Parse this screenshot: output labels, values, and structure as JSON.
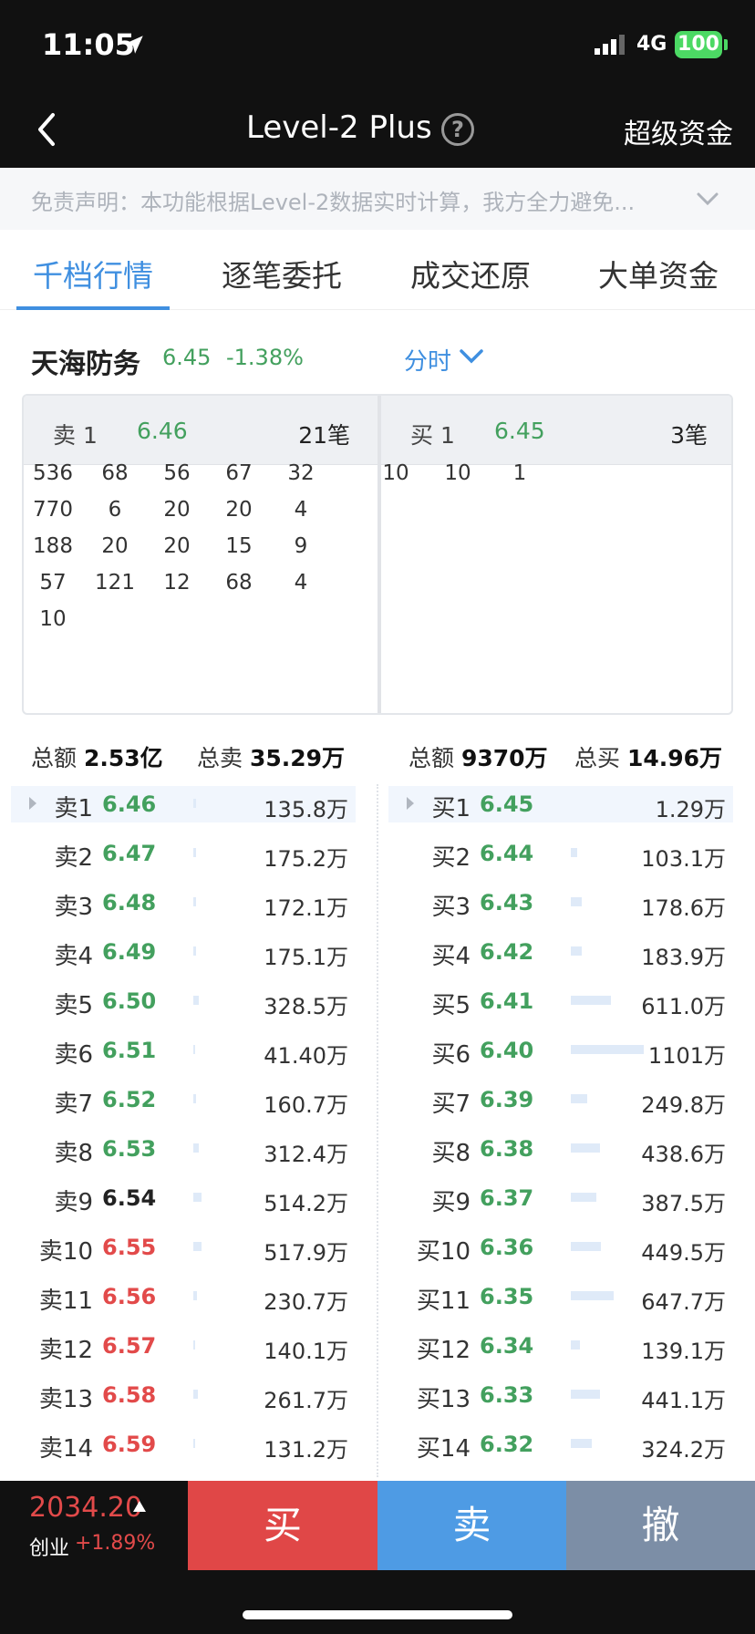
{
  "status": {
    "time": "11:05",
    "network": "4G",
    "battery": "100"
  },
  "nav": {
    "title": "Level-2 Plus",
    "help": "?",
    "right": "超级资金"
  },
  "disclaimer": "免责声明：本功能根据Level-2数据实时计算，我方全力避免...",
  "tabs": [
    "千档行情",
    "逐笔委托",
    "成交还原",
    "大单资金"
  ],
  "stock": {
    "name": "天海防务",
    "price": "6.45",
    "change": "-1.38%",
    "mode": "分时"
  },
  "queue": {
    "sell_label": "卖 1",
    "sell_price": "6.46",
    "sell_count": "21笔",
    "buy_label": "买 1",
    "buy_price": "6.45",
    "buy_count": "3笔",
    "sell_orders": [
      [
        "536",
        "68",
        "56",
        "67",
        "32"
      ],
      [
        "770",
        "6",
        "20",
        "20",
        "4"
      ],
      [
        "188",
        "20",
        "20",
        "15",
        "9"
      ],
      [
        "57",
        "121",
        "12",
        "68",
        "4"
      ],
      [
        "10"
      ]
    ],
    "buy_orders": [
      [
        "10",
        "10",
        "1"
      ]
    ]
  },
  "totals": {
    "sell_amount_label": "总额",
    "sell_amount": "2.53亿",
    "sell_volume_label": "总卖",
    "sell_volume": "35.29万",
    "buy_amount_label": "总额",
    "buy_amount": "9370万",
    "buy_volume_label": "总买",
    "buy_volume": "14.96万"
  },
  "asks": [
    {
      "level": "卖1",
      "price": "6.46",
      "volume": "135.8万",
      "bar": 0.4,
      "color": "green"
    },
    {
      "level": "卖2",
      "price": "6.47",
      "volume": "175.2万",
      "bar": 0.4,
      "color": "green"
    },
    {
      "level": "卖3",
      "price": "6.48",
      "volume": "172.1万",
      "bar": 0.4,
      "color": "green"
    },
    {
      "level": "卖4",
      "price": "6.49",
      "volume": "175.1万",
      "bar": 0.4,
      "color": "green"
    },
    {
      "level": "卖5",
      "price": "6.50",
      "volume": "328.5万",
      "bar": 0.8,
      "color": "green"
    },
    {
      "level": "卖6",
      "price": "6.51",
      "volume": "41.40万",
      "bar": 0.2,
      "color": "green"
    },
    {
      "level": "卖7",
      "price": "6.52",
      "volume": "160.7万",
      "bar": 0.4,
      "color": "green"
    },
    {
      "level": "卖8",
      "price": "6.53",
      "volume": "312.4万",
      "bar": 0.7,
      "color": "green"
    },
    {
      "level": "卖9",
      "price": "6.54",
      "volume": "514.2万",
      "bar": 1.1,
      "color": "black"
    },
    {
      "level": "卖10",
      "price": "6.55",
      "volume": "517.9万",
      "bar": 1.1,
      "color": "red"
    },
    {
      "level": "卖11",
      "price": "6.56",
      "volume": "230.7万",
      "bar": 0.5,
      "color": "red"
    },
    {
      "level": "卖12",
      "price": "6.57",
      "volume": "140.1万",
      "bar": 0.3,
      "color": "red"
    },
    {
      "level": "卖13",
      "price": "6.58",
      "volume": "261.7万",
      "bar": 0.6,
      "color": "red"
    },
    {
      "level": "卖14",
      "price": "6.59",
      "volume": "131.2万",
      "bar": 0.3,
      "color": "red"
    }
  ],
  "bids": [
    {
      "level": "买1",
      "price": "6.45",
      "volume": "1.29万",
      "bar": 0,
      "color": "green"
    },
    {
      "level": "买2",
      "price": "6.44",
      "volume": "103.1万",
      "bar": 0.9,
      "color": "green"
    },
    {
      "level": "买3",
      "price": "6.43",
      "volume": "178.6万",
      "bar": 1.5,
      "color": "green"
    },
    {
      "level": "买4",
      "price": "6.42",
      "volume": "183.9万",
      "bar": 1.5,
      "color": "green"
    },
    {
      "level": "买5",
      "price": "6.41",
      "volume": "611.0万",
      "bar": 5.5,
      "color": "green"
    },
    {
      "level": "买6",
      "price": "6.40",
      "volume": "1101万",
      "bar": 10,
      "color": "green"
    },
    {
      "level": "买7",
      "price": "6.39",
      "volume": "249.8万",
      "bar": 2.2,
      "color": "green"
    },
    {
      "level": "买8",
      "price": "6.38",
      "volume": "438.6万",
      "bar": 4,
      "color": "green"
    },
    {
      "level": "买9",
      "price": "6.37",
      "volume": "387.5万",
      "bar": 3.5,
      "color": "green"
    },
    {
      "level": "买10",
      "price": "6.36",
      "volume": "449.5万",
      "bar": 4.1,
      "color": "green"
    },
    {
      "level": "买11",
      "price": "6.35",
      "volume": "647.7万",
      "bar": 5.9,
      "color": "green"
    },
    {
      "level": "买12",
      "price": "6.34",
      "volume": "139.1万",
      "bar": 1.2,
      "color": "green"
    },
    {
      "level": "买13",
      "price": "6.33",
      "volume": "441.1万",
      "bar": 4,
      "color": "green"
    },
    {
      "level": "买14",
      "price": "6.32",
      "volume": "324.2万",
      "bar": 2.9,
      "color": "green"
    }
  ],
  "index": {
    "value": "2034.20",
    "name": "创业",
    "change": "+1.89%"
  },
  "actions": {
    "buy": "买",
    "sell": "卖",
    "cancel": "撤"
  },
  "colors": {
    "green": "#43a05e",
    "red": "#e24a4a",
    "accent": "#3f8fe0",
    "buy_button": "#e04747",
    "sell_button": "#4e9be4",
    "cancel_button": "#7c8ea6"
  }
}
